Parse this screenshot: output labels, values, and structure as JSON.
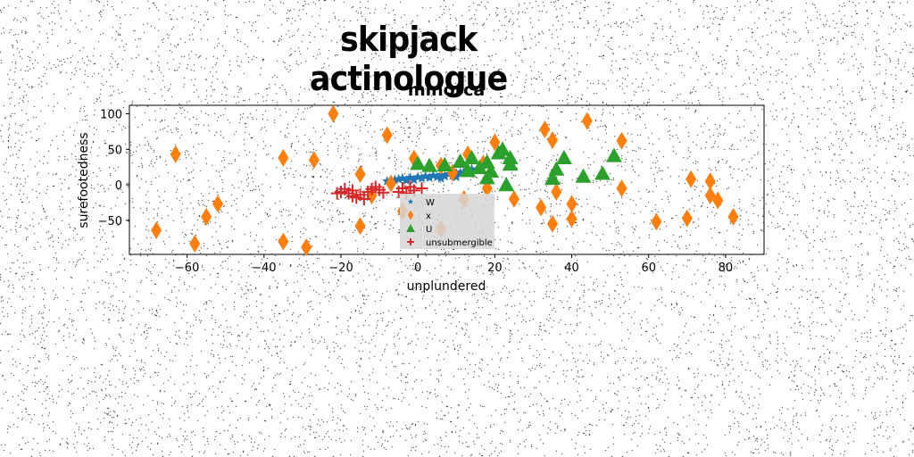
{
  "figure": {
    "suptitle": "skipjack actinologue"
  },
  "chart_data": {
    "type": "scatter",
    "title": "minorca",
    "xlabel": "unplundered",
    "ylabel": "surefootedness",
    "xlim": [
      -75,
      90
    ],
    "ylim": [
      -98,
      112
    ],
    "xticks": [
      -60,
      -40,
      -20,
      0,
      20,
      40,
      60,
      80
    ],
    "yticks": [
      -50,
      0,
      50,
      100
    ],
    "legend_position": "lower-center",
    "series": [
      {
        "name": "W",
        "marker": "star",
        "color": "#1f77b4",
        "points": [
          [
            -6,
            7
          ],
          [
            -4,
            9
          ],
          [
            -2,
            10
          ],
          [
            0,
            11
          ],
          [
            2,
            12
          ],
          [
            4,
            13
          ],
          [
            6,
            14
          ],
          [
            8,
            15
          ],
          [
            10,
            16
          ],
          [
            12,
            18
          ],
          [
            -8,
            5
          ],
          [
            -3,
            6
          ],
          [
            1,
            9
          ],
          [
            5,
            11
          ],
          [
            9,
            13
          ],
          [
            13,
            20
          ],
          [
            -1,
            7
          ],
          [
            3,
            10
          ],
          [
            7,
            12
          ],
          [
            11,
            17
          ],
          [
            -5,
            8
          ],
          [
            14,
            22
          ],
          [
            -7,
            6
          ],
          [
            6,
            9
          ],
          [
            10,
            11
          ]
        ]
      },
      {
        "name": "x",
        "marker": "diamond",
        "color": "#ff7f0e",
        "points": [
          [
            -22,
            100
          ],
          [
            -63,
            43
          ],
          [
            -35,
            38
          ],
          [
            -27,
            35
          ],
          [
            -8,
            70
          ],
          [
            -15,
            15
          ],
          [
            -7,
            2
          ],
          [
            -4,
            -37
          ],
          [
            -15,
            -58
          ],
          [
            -52,
            -27
          ],
          [
            -55,
            -45
          ],
          [
            -58,
            -83
          ],
          [
            -68,
            -64
          ],
          [
            -35,
            -80
          ],
          [
            -29,
            -88
          ],
          [
            -1,
            37
          ],
          [
            6,
            27
          ],
          [
            13,
            43
          ],
          [
            20,
            60
          ],
          [
            17,
            30
          ],
          [
            33,
            78
          ],
          [
            35,
            63
          ],
          [
            44,
            90
          ],
          [
            53,
            62
          ],
          [
            36,
            -10
          ],
          [
            40,
            -27
          ],
          [
            32,
            -32
          ],
          [
            35,
            -55
          ],
          [
            40,
            -48
          ],
          [
            53,
            -5
          ],
          [
            62,
            -52
          ],
          [
            71,
            8
          ],
          [
            76,
            5
          ],
          [
            76,
            -15
          ],
          [
            78,
            -22
          ],
          [
            70,
            -47
          ],
          [
            82,
            -45
          ],
          [
            25,
            -20
          ],
          [
            6,
            -62
          ],
          [
            12,
            -20
          ],
          [
            -12,
            -15
          ],
          [
            18,
            -5
          ],
          [
            9,
            17
          ]
        ]
      },
      {
        "name": "U",
        "marker": "triangle",
        "color": "#2ca02c",
        "points": [
          [
            0,
            30
          ],
          [
            3,
            27
          ],
          [
            7,
            28
          ],
          [
            11,
            33
          ],
          [
            14,
            38
          ],
          [
            16,
            24
          ],
          [
            18,
            32
          ],
          [
            18,
            10
          ],
          [
            19,
            19
          ],
          [
            22,
            50
          ],
          [
            24,
            38
          ],
          [
            23,
            0
          ],
          [
            24,
            29
          ],
          [
            35,
            9
          ],
          [
            36,
            22
          ],
          [
            38,
            38
          ],
          [
            43,
            12
          ],
          [
            48,
            16
          ],
          [
            51,
            41
          ],
          [
            13,
            20
          ],
          [
            21,
            45
          ]
        ]
      },
      {
        "name": "unsubmergible",
        "marker": "plus",
        "color": "#d62728",
        "points": [
          [
            -20,
            -10
          ],
          [
            -18,
            -12
          ],
          [
            -17,
            -8
          ],
          [
            -16,
            -18
          ],
          [
            -15,
            -14
          ],
          [
            -13,
            -10
          ],
          [
            -12,
            -6
          ],
          [
            -11,
            -3
          ],
          [
            -10,
            -7
          ],
          [
            -9,
            -11
          ],
          [
            -19,
            -6
          ],
          [
            -14,
            -20
          ],
          [
            -4,
            -5
          ],
          [
            -2,
            -3
          ],
          [
            -1,
            -8
          ],
          [
            1,
            -5
          ],
          [
            -3,
            -12
          ],
          [
            -17,
            -16
          ],
          [
            -21,
            -12
          ],
          [
            -5,
            -10
          ]
        ]
      }
    ]
  }
}
